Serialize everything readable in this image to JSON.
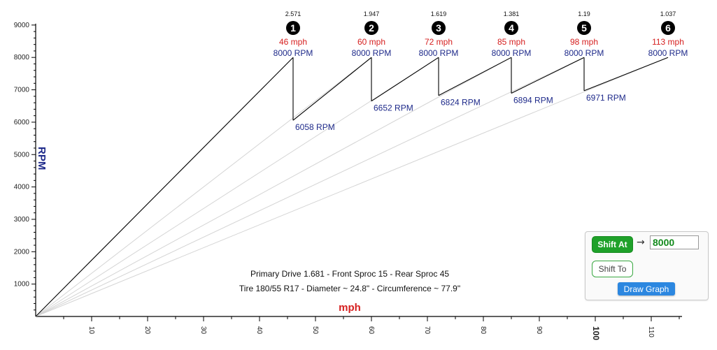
{
  "chart_data": {
    "type": "line",
    "title": "",
    "ylabel": "RPM",
    "xlabel": "mph",
    "xlim": [
      0,
      115
    ],
    "ylim": [
      0,
      9000
    ],
    "x_ticks": [
      10,
      20,
      30,
      40,
      50,
      60,
      70,
      80,
      90,
      100,
      110
    ],
    "x_tick_labels": [
      "10",
      "20",
      "30",
      "40",
      "50",
      "60",
      "70",
      "80",
      "90",
      "100",
      "110"
    ],
    "y_ticks": [
      1000,
      2000,
      3000,
      4000,
      5000,
      6000,
      7000,
      8000,
      9000
    ],
    "y_tick_labels": [
      "1000",
      "2000",
      "3000",
      "4000",
      "5000",
      "6000",
      "7000",
      "8000",
      "9000"
    ],
    "shift_rpm": 8000,
    "gears": [
      {
        "gear": "1",
        "ratio": "2.571",
        "top_mph": 46,
        "top_mph_label": "46 mph",
        "top_rpm_label": "8000 RPM",
        "start_rpm": 0,
        "start_rpm_label": ""
      },
      {
        "gear": "2",
        "ratio": "1.947",
        "top_mph": 60,
        "top_mph_label": "60 mph",
        "top_rpm_label": "8000 RPM",
        "start_rpm": 6058,
        "start_rpm_label": "6058 RPM"
      },
      {
        "gear": "3",
        "ratio": "1.619",
        "top_mph": 72,
        "top_mph_label": "72 mph",
        "top_rpm_label": "8000 RPM",
        "start_rpm": 6652,
        "start_rpm_label": "6652 RPM"
      },
      {
        "gear": "4",
        "ratio": "1.381",
        "top_mph": 85,
        "top_mph_label": "85 mph",
        "top_rpm_label": "8000 RPM",
        "start_rpm": 6824,
        "start_rpm_label": "6824 RPM"
      },
      {
        "gear": "5",
        "ratio": "1.19",
        "top_mph": 98,
        "top_mph_label": "98 mph",
        "top_rpm_label": "8000 RPM",
        "start_rpm": 6894,
        "start_rpm_label": "6894 RPM"
      },
      {
        "gear": "6",
        "ratio": "1.037",
        "top_mph": 113,
        "top_mph_label": "113 mph",
        "top_rpm_label": "8000 RPM",
        "start_rpm": 6971,
        "start_rpm_label": "6971 RPM"
      }
    ],
    "info_line_1": "Primary Drive 1.681 -  Front Sproc 15  -   Rear Sproc 45",
    "info_line_2": "Tire 180/55 R17 - Diameter ~ 24.8\" - Circumference ~ 77.9\""
  },
  "controls": {
    "shift_at_label": "Shift At",
    "arrow": "→",
    "shift_value": "8000",
    "shift_to_label": "Shift To",
    "draw_graph_label": "Draw Graph"
  }
}
